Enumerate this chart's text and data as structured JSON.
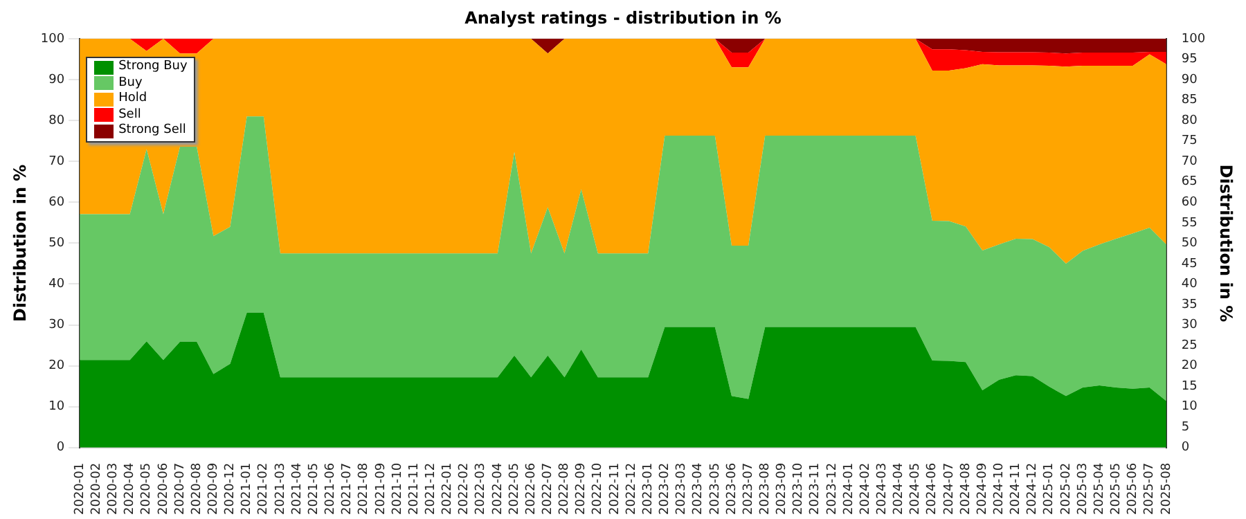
{
  "chart_data": {
    "type": "area",
    "title": "Analyst ratings - distribution in %",
    "ylabel": "Distribution in %",
    "y2label": "Distribution in %",
    "categories": [
      "2020-01",
      "2020-02",
      "2020-03",
      "2020-04",
      "2020-05",
      "2020-06",
      "2020-07",
      "2020-08",
      "2020-09",
      "2020-12",
      "2021-01",
      "2021-02",
      "2021-03",
      "2021-04",
      "2021-05",
      "2021-06",
      "2021-07",
      "2021-08",
      "2021-09",
      "2021-10",
      "2021-11",
      "2021-12",
      "2022-01",
      "2022-02",
      "2022-03",
      "2022-04",
      "2022-05",
      "2022-06",
      "2022-07",
      "2022-08",
      "2022-09",
      "2022-10",
      "2022-11",
      "2022-12",
      "2023-01",
      "2023-02",
      "2023-03",
      "2023-04",
      "2023-05",
      "2023-06",
      "2023-07",
      "2023-08",
      "2023-09",
      "2023-10",
      "2023-11",
      "2023-12",
      "2024-01",
      "2024-02",
      "2024-03",
      "2024-04",
      "2024-05",
      "2024-06",
      "2024-07",
      "2024-08",
      "2024-09",
      "2024-10",
      "2024-11",
      "2024-12",
      "2025-01",
      "2025-02",
      "2025-03",
      "2025-04",
      "2025-05",
      "2025-06",
      "2025-07",
      "2025-08"
    ],
    "stacked": true,
    "series": [
      {
        "name": "Strong Buy",
        "color": "#009000",
        "values": [
          21.4,
          21.4,
          21.4,
          21.4,
          26,
          21.4,
          25.9,
          25.9,
          18,
          20.5,
          33,
          33,
          17.2,
          17.2,
          17.2,
          17.2,
          17.2,
          17.2,
          17.2,
          17.2,
          17.2,
          17.2,
          17.2,
          17.2,
          17.2,
          17.2,
          22.5,
          17.2,
          22.5,
          17.2,
          24,
          17.2,
          17.2,
          17.2,
          17.2,
          29.5,
          29.5,
          29.5,
          29.5,
          12.6,
          11.9,
          29.5,
          29.5,
          29.5,
          29.5,
          29.5,
          29.5,
          29.5,
          29.5,
          29.5,
          29.5,
          21.3,
          21.2,
          20.9,
          14,
          16.6,
          17.7,
          17.5,
          14.9,
          12.6,
          14.7,
          15.2,
          14.7,
          14.4,
          14.7,
          11.4
        ]
      },
      {
        "name": "Buy",
        "color": "#66c864",
        "values": [
          35.7,
          35.7,
          35.7,
          35.7,
          47,
          35.7,
          47.7,
          47.7,
          33.7,
          33.5,
          48,
          48,
          30.3,
          30.3,
          30.3,
          30.3,
          30.3,
          30.3,
          30.3,
          30.3,
          30.3,
          30.3,
          30.3,
          30.3,
          30.3,
          30.3,
          49.8,
          30.3,
          36.3,
          30.3,
          39.2,
          30.3,
          30.3,
          30.3,
          30.3,
          46.8,
          46.8,
          46.8,
          46.8,
          36.8,
          37.5,
          46.8,
          46.8,
          46.8,
          46.8,
          46.8,
          46.8,
          46.8,
          46.8,
          46.8,
          46.8,
          34.2,
          34.2,
          33.2,
          34.2,
          33.1,
          33.4,
          33.5,
          34.1,
          32.4,
          33.4,
          34.5,
          36.4,
          38,
          39.1,
          38.3
        ]
      },
      {
        "name": "Hold",
        "color": "#ffa500",
        "values": [
          42.9,
          42.9,
          42.9,
          42.9,
          24,
          42.9,
          22.8,
          22.8,
          48.3,
          46,
          19,
          19,
          52.5,
          52.5,
          52.5,
          52.5,
          52.5,
          52.5,
          52.5,
          52.5,
          52.5,
          52.5,
          52.5,
          52.5,
          52.5,
          52.5,
          27.7,
          52.5,
          37.6,
          52.5,
          36.8,
          52.5,
          52.5,
          52.5,
          52.5,
          23.7,
          23.7,
          23.7,
          23.7,
          43.6,
          43.6,
          23.7,
          23.7,
          23.7,
          23.7,
          23.7,
          23.7,
          23.7,
          23.7,
          23.7,
          23.7,
          36.7,
          36.8,
          38.7,
          45.6,
          43.8,
          42.4,
          42.5,
          44.4,
          48.2,
          45.3,
          43.7,
          42.3,
          41,
          42.4,
          44.1
        ]
      },
      {
        "name": "Sell",
        "color": "#ff0000",
        "values": [
          0,
          0,
          0,
          0,
          3,
          0,
          3.6,
          3.6,
          0,
          0,
          0,
          0,
          0,
          0,
          0,
          0,
          0,
          0,
          0,
          0,
          0,
          0,
          0,
          0,
          0,
          0,
          0,
          0,
          0,
          0,
          0,
          0,
          0,
          0,
          0,
          0,
          0,
          0,
          0,
          3.6,
          3.6,
          0,
          0,
          0,
          0,
          0,
          0,
          0,
          0,
          0,
          0,
          5.2,
          5.2,
          4.4,
          3,
          3.2,
          3.2,
          3.2,
          3.2,
          3.2,
          3.2,
          3.2,
          3.2,
          3.2,
          0.6,
          3
        ]
      },
      {
        "name": "Strong Sell",
        "color": "#8b0000",
        "values": [
          0,
          0,
          0,
          0,
          0,
          0,
          0,
          0,
          0,
          0,
          0,
          0,
          0,
          0,
          0,
          0,
          0,
          0,
          0,
          0,
          0,
          0,
          0,
          0,
          0,
          0,
          0,
          0,
          3.6,
          0,
          0,
          0,
          0,
          0,
          0,
          0,
          0,
          0,
          0,
          3.4,
          3.4,
          0,
          0,
          0,
          0,
          0,
          0,
          0,
          0,
          0,
          0,
          2.6,
          2.6,
          2.8,
          3.2,
          3.3,
          3.3,
          3.3,
          3.4,
          3.6,
          3.4,
          3.4,
          3.4,
          3.4,
          3.2,
          3.2
        ]
      }
    ],
    "ylim": [
      0,
      100
    ],
    "yticks": [
      0,
      10,
      20,
      30,
      40,
      50,
      60,
      70,
      80,
      90,
      100
    ],
    "y2lim": [
      0,
      100
    ],
    "y2ticks": [
      0,
      5,
      10,
      15,
      20,
      25,
      30,
      35,
      40,
      45,
      50,
      55,
      60,
      65,
      70,
      75,
      80,
      85,
      90,
      95,
      100
    ],
    "grid": "y",
    "legend": "top left"
  }
}
